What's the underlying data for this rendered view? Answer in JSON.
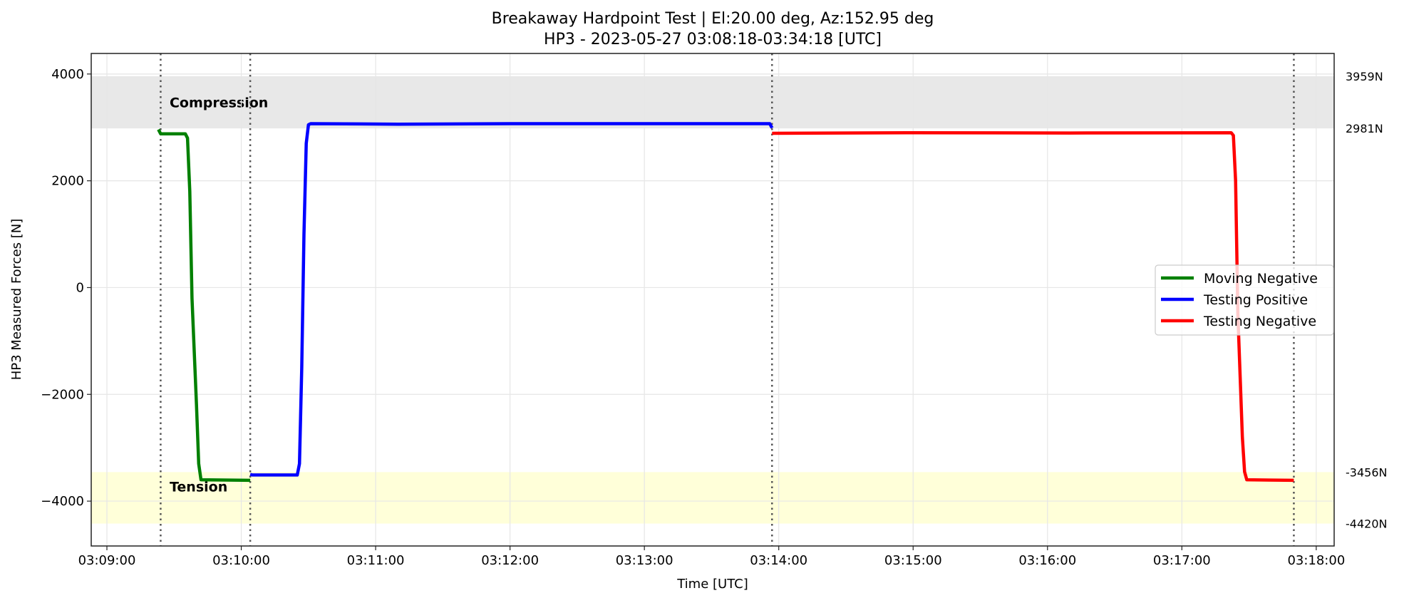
{
  "chart_data": {
    "type": "line",
    "title": "Breakaway Hardpoint Test | El:20.00 deg, Az:152.95 deg",
    "subtitle": "HP3 - 2023-05-27 03:08:18-03:34:18 [UTC]",
    "xlabel": "Time [UTC]",
    "ylabel": "HP3 Measured Forces [N]",
    "xlim": [
      "03:08:53",
      "03:18:08"
    ],
    "ylim": [
      -4840,
      4385
    ],
    "x_ticks": [
      "03:09:00",
      "03:10:00",
      "03:11:00",
      "03:12:00",
      "03:13:00",
      "03:14:00",
      "03:15:00",
      "03:16:00",
      "03:17:00",
      "03:18:00"
    ],
    "y_ticks": [
      4000,
      2000,
      0,
      -2000,
      -4000
    ],
    "y_tick_labels": [
      "4000",
      "2000",
      "0",
      "−2000",
      "−4000"
    ],
    "grid": true,
    "legend_placement": "center-right",
    "bands": [
      {
        "label": "Compression",
        "from": 2981,
        "to": 3959,
        "color": "#e8e8e8",
        "label_at": [
          "03:09:28",
          3380
        ]
      },
      {
        "label": "Tension",
        "from": -4420,
        "to": -3456,
        "color": "#ffffd9",
        "label_at": [
          "03:09:28",
          -3820
        ]
      }
    ],
    "right_labels": [
      {
        "value": 3959,
        "text": "3959N"
      },
      {
        "value": 2981,
        "text": "2981N"
      },
      {
        "value": -3456,
        "text": "-3456N"
      },
      {
        "value": -4420,
        "text": "-4420N"
      }
    ],
    "vlines": [
      "03:09:24",
      "03:10:04",
      "03:13:57",
      "03:17:50"
    ],
    "series": [
      {
        "name": "Moving Negative",
        "color": "#008000",
        "points": [
          [
            "03:09:23",
            2960
          ],
          [
            "03:09:24",
            2880
          ],
          [
            "03:09:35",
            2880
          ],
          [
            "03:09:36",
            2800
          ],
          [
            "03:09:37",
            1800
          ],
          [
            "03:09:38",
            -200
          ],
          [
            "03:09:40",
            -2200
          ],
          [
            "03:09:41",
            -3300
          ],
          [
            "03:09:42",
            -3600
          ],
          [
            "03:10:04",
            -3610
          ]
        ]
      },
      {
        "name": "Testing Positive",
        "color": "#0000ff",
        "points": [
          [
            "03:10:04",
            -3500
          ],
          [
            "03:10:05",
            -3510
          ],
          [
            "03:10:25",
            -3510
          ],
          [
            "03:10:26",
            -3300
          ],
          [
            "03:10:27",
            -1500
          ],
          [
            "03:10:28",
            1000
          ],
          [
            "03:10:29",
            2700
          ],
          [
            "03:10:30",
            3050
          ],
          [
            "03:10:31",
            3070
          ],
          [
            "03:11:10",
            3060
          ],
          [
            "03:12:00",
            3070
          ],
          [
            "03:13:56",
            3070
          ],
          [
            "03:13:57",
            2990
          ]
        ]
      },
      {
        "name": "Testing Negative",
        "color": "#ff0000",
        "points": [
          [
            "03:13:57",
            2890
          ],
          [
            "03:15:00",
            2900
          ],
          [
            "03:16:10",
            2895
          ],
          [
            "03:17:22",
            2900
          ],
          [
            "03:17:23",
            2850
          ],
          [
            "03:17:24",
            2000
          ],
          [
            "03:17:25",
            -500
          ],
          [
            "03:17:27",
            -2800
          ],
          [
            "03:17:28",
            -3450
          ],
          [
            "03:17:29",
            -3600
          ],
          [
            "03:17:50",
            -3610
          ]
        ]
      }
    ]
  }
}
